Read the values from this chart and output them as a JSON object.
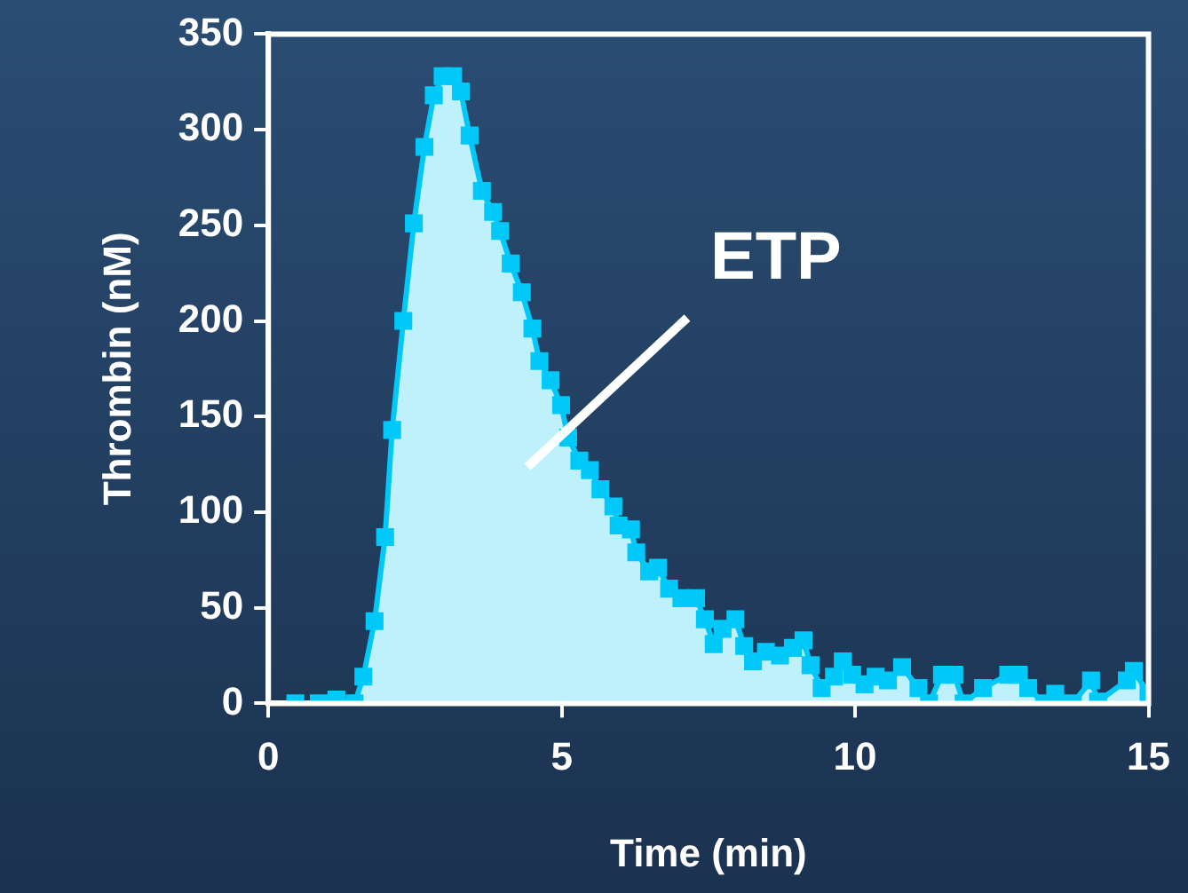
{
  "chart_data": {
    "type": "area",
    "xlabel": "Time (min)",
    "ylabel": "Thrombin (nM)",
    "x": [
      0.46,
      0.86,
      1.16,
      1.47,
      1.62,
      1.81,
      1.99,
      2.11,
      2.3,
      2.48,
      2.66,
      2.82,
      2.97,
      3.15,
      3.28,
      3.43,
      3.64,
      3.83,
      3.95,
      4.13,
      4.32,
      4.5,
      4.62,
      4.81,
      4.99,
      5.11,
      5.3,
      5.48,
      5.66,
      5.88,
      5.97,
      6.18,
      6.27,
      6.49,
      6.64,
      6.83,
      7.04,
      7.29,
      7.44,
      7.59,
      7.74,
      7.96,
      8.11,
      8.26,
      8.48,
      8.72,
      8.94,
      9.12,
      9.24,
      9.43,
      9.64,
      9.79,
      9.95,
      10.16,
      10.35,
      10.56,
      10.8,
      11.08,
      11.26,
      11.48,
      11.69,
      11.85,
      12.18,
      12.61,
      12.79,
      12.95,
      13.22,
      13.41,
      13.71,
      14.02,
      14.14,
      14.63,
      14.75,
      15
    ],
    "series": [
      {
        "color": "#00c8f8",
        "values": [
          0,
          0,
          2,
          0,
          14,
          43,
          87,
          143,
          200,
          251,
          291,
          318,
          328,
          328,
          320,
          297,
          268,
          257,
          247,
          230,
          215,
          196,
          179,
          169,
          156,
          139,
          127,
          122,
          112,
          103,
          93,
          91,
          79,
          69,
          71,
          60,
          55,
          55,
          44,
          31,
          39,
          44,
          30,
          22,
          27,
          25,
          29,
          33,
          20,
          8,
          14,
          22,
          15,
          10,
          14,
          12,
          19,
          8,
          0,
          15,
          15,
          0,
          8,
          15,
          15,
          8,
          0,
          5,
          0,
          12,
          1,
          12,
          17,
          5
        ]
      }
    ],
    "xlim": [
      0,
      15
    ],
    "xticks": [
      0,
      5,
      10,
      15
    ],
    "ylim": [
      0,
      350
    ],
    "yticks": [
      0,
      50,
      100,
      150,
      200,
      250,
      300,
      350
    ],
    "grid": false,
    "legend": false,
    "marker": "square",
    "line_style": "solid",
    "annotations": [
      "ETP"
    ]
  }
}
